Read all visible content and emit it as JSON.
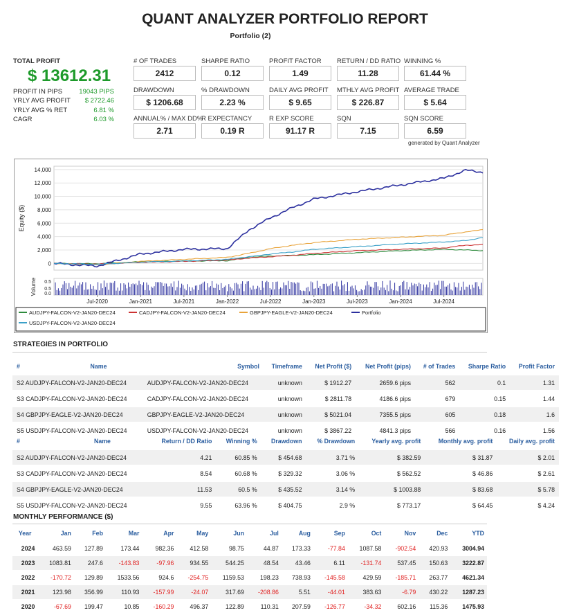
{
  "header": {
    "title": "QUANT ANALYZER PORTFOLIO REPORT",
    "subtitle": "Portfolio (2)"
  },
  "summary": {
    "total_profit_label": "TOTAL PROFIT",
    "total_profit_value": "$ 13612.31",
    "rows": [
      {
        "label": "PROFIT IN PIPS",
        "value": "19043 PIPS"
      },
      {
        "label": "YRLY AVG PROFIT",
        "value": "$ 2722.46"
      },
      {
        "label": "YRLY AVG % RET",
        "value": "6.81 %"
      },
      {
        "label": "CAGR",
        "value": "6.03 %"
      }
    ]
  },
  "metrics": [
    {
      "label": "# OF TRADES",
      "value": "2412"
    },
    {
      "label": "SHARPE RATIO",
      "value": "0.12"
    },
    {
      "label": "PROFIT FACTOR",
      "value": "1.49"
    },
    {
      "label": "RETURN / DD RATIO",
      "value": "11.28"
    },
    {
      "label": "WINNING %",
      "value": "61.44 %"
    },
    {
      "label": "DRAWDOWN",
      "value": "$ 1206.68"
    },
    {
      "label": "% DRAWDOWN",
      "value": "2.23 %"
    },
    {
      "label": "DAILY AVG PROFIT",
      "value": "$ 9.65"
    },
    {
      "label": "MTHLY AVG PROFIT",
      "value": "$ 226.87"
    },
    {
      "label": "AVERAGE TRADE",
      "value": "$ 5.64"
    },
    {
      "label": "ANNUAL% / MAX DD%",
      "value": "2.71"
    },
    {
      "label": "R EXPECTANCY",
      "value": "0.19 R"
    },
    {
      "label": "R EXP SCORE",
      "value": "91.17 R"
    },
    {
      "label": "SQN",
      "value": "7.15"
    },
    {
      "label": "SQN SCORE",
      "value": "6.59"
    }
  ],
  "generated_by": "generated by Quant Analyzer",
  "chart_data": {
    "type": "line",
    "ylabel": "Equity ($)",
    "volume_label": "Volume",
    "ylim": [
      -1000,
      14500
    ],
    "yticks": [
      "14,000",
      "12,000",
      "10,000",
      "8,000",
      "6,000",
      "4,000",
      "2,000",
      "0"
    ],
    "volume_ticks": [
      "0.5",
      "0.5",
      "0.0"
    ],
    "xticks": [
      "Jul-2020",
      "Jan-2021",
      "Jul-2021",
      "Jan-2022",
      "Jul-2022",
      "Jan-2023",
      "Jul-2023",
      "Jan-2024",
      "Jul-2024"
    ],
    "x": [
      2020.0,
      2020.5,
      2021.0,
      2021.5,
      2022.0,
      2022.25,
      2022.5,
      2022.75,
      2023.0,
      2023.5,
      2024.0,
      2024.5,
      2024.75,
      2024.95
    ],
    "series": [
      {
        "name": "AUDJPY-FALCON-V2-JAN20-DEC24",
        "color": "#2e8b3d",
        "values": [
          0,
          -50,
          250,
          350,
          400,
          900,
          1100,
          1200,
          1300,
          1600,
          1900,
          2100,
          2000,
          1912
        ]
      },
      {
        "name": "CADJPY-FALCON-V2-JAN20-DEC24",
        "color": "#cc3333",
        "values": [
          0,
          -100,
          150,
          300,
          500,
          800,
          1000,
          1200,
          1500,
          1900,
          2100,
          2300,
          2700,
          2812
        ]
      },
      {
        "name": "GBPJPY-EAGLE-V2-JAN20-DEC24",
        "color": "#e8a33a",
        "values": [
          0,
          -200,
          300,
          600,
          900,
          1500,
          2200,
          2700,
          3100,
          3600,
          3900,
          4200,
          4700,
          5021
        ]
      },
      {
        "name": "Portfolio",
        "color": "#2b2f9e",
        "values": [
          0,
          -400,
          1400,
          2100,
          2200,
          5000,
          6800,
          8300,
          9600,
          10700,
          11700,
          12700,
          13900,
          13612
        ]
      },
      {
        "name": "USDJPY-FALCON-V2-JAN20-DEC24",
        "color": "#3aa0c8",
        "values": [
          0,
          -150,
          200,
          350,
          600,
          1000,
          1400,
          1700,
          2100,
          2500,
          2900,
          3200,
          3400,
          3867
        ]
      }
    ]
  },
  "strategies": {
    "section_title": "STRATEGIES IN PORTFOLIO",
    "table1_headers": [
      "#",
      "Name",
      "Symbol",
      "Timeframe",
      "Net Profit ($)",
      "Net Profit (pips)",
      "# of Trades",
      "Sharpe Ratio",
      "Profit Factor"
    ],
    "table1_rows": [
      [
        "S2",
        "AUDJPY-FALCON-V2-JAN20-DEC24",
        "AUDJPY-FALCON-V2-JAN20-DEC24",
        "unknown",
        "$ 1912.27",
        "2659.6 pips",
        "562",
        "0.1",
        "1.31"
      ],
      [
        "S3",
        "CADJPY-FALCON-V2-JAN20-DEC24",
        "CADJPY-FALCON-V2-JAN20-DEC24",
        "unknown",
        "$ 2811.78",
        "4186.6 pips",
        "679",
        "0.15",
        "1.44"
      ],
      [
        "S4",
        "GBPJPY-EAGLE-V2-JAN20-DEC24",
        "GBPJPY-EAGLE-V2-JAN20-DEC24",
        "unknown",
        "$ 5021.04",
        "7355.5 pips",
        "605",
        "0.18",
        "1.6"
      ],
      [
        "S5",
        "USDJPY-FALCON-V2-JAN20-DEC24",
        "USDJPY-FALCON-V2-JAN20-DEC24",
        "unknown",
        "$ 3867.22",
        "4841.3 pips",
        "566",
        "0.16",
        "1.56"
      ]
    ],
    "table2_headers": [
      "#",
      "Name",
      "Return / DD Ratio",
      "Winning %",
      "Drawdown",
      "% Drawdown",
      "Yearly avg. profit",
      "Monthly avg. profit",
      "Daily avg. profit"
    ],
    "table2_rows": [
      [
        "S2",
        "AUDJPY-FALCON-V2-JAN20-DEC24",
        "4.21",
        "60.85 %",
        "$ 454.68",
        "3.71 %",
        "$ 382.59",
        "$ 31.87",
        "$ 2.01"
      ],
      [
        "S3",
        "CADJPY-FALCON-V2-JAN20-DEC24",
        "8.54",
        "60.68 %",
        "$ 329.32",
        "3.06 %",
        "$ 562.52",
        "$ 46.86",
        "$ 2.61"
      ],
      [
        "S4",
        "GBPJPY-EAGLE-V2-JAN20-DEC24",
        "11.53",
        "60.5 %",
        "$ 435.52",
        "3.14 %",
        "$ 1003.88",
        "$ 83.68",
        "$ 5.78"
      ],
      [
        "S5",
        "USDJPY-FALCON-V2-JAN20-DEC24",
        "9.55",
        "63.96 %",
        "$ 404.75",
        "2.9 %",
        "$ 773.17",
        "$ 64.45",
        "$ 4.24"
      ]
    ]
  },
  "monthly": {
    "section_title": "MONTHLY PERFORMANCE ($)",
    "headers": [
      "Year",
      "Jan",
      "Feb",
      "Mar",
      "Apr",
      "May",
      "Jun",
      "Jul",
      "Aug",
      "Sep",
      "Oct",
      "Nov",
      "Dec",
      "YTD"
    ],
    "rows": [
      [
        "2024",
        "463.59",
        "127.89",
        "173.44",
        "982.36",
        "412.58",
        "98.75",
        "44.87",
        "173.33",
        "-77.84",
        "1087.58",
        "-902.54",
        "420.93",
        "3004.94"
      ],
      [
        "2023",
        "1083.81",
        "247.6",
        "-143.83",
        "-97.96",
        "934.55",
        "544.25",
        "48.54",
        "43.46",
        "6.11",
        "-131.74",
        "537.45",
        "150.63",
        "3222.87"
      ],
      [
        "2022",
        "-170.72",
        "129.89",
        "1533.56",
        "924.6",
        "-254.75",
        "1159.53",
        "198.23",
        "738.93",
        "-145.58",
        "429.59",
        "-185.71",
        "263.77",
        "4621.34"
      ],
      [
        "2021",
        "123.98",
        "356.99",
        "110.93",
        "-157.99",
        "-24.07",
        "317.69",
        "-208.86",
        "5.51",
        "-44.01",
        "383.63",
        "-6.79",
        "430.22",
        "1287.23"
      ],
      [
        "2020",
        "-67.69",
        "199.47",
        "10.85",
        "-160.29",
        "496.37",
        "122.89",
        "110.31",
        "207.59",
        "-126.77",
        "-34.32",
        "602.16",
        "115.36",
        "1475.93"
      ]
    ]
  }
}
